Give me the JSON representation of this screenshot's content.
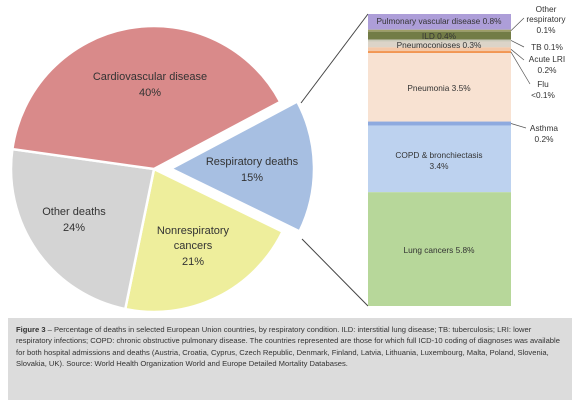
{
  "chart_data": [
    {
      "type": "pie",
      "slices": [
        {
          "label": "Cardiovascular disease",
          "value_label": "40%",
          "value": 40,
          "color": "#d98a8a"
        },
        {
          "label": "Respiratory deaths",
          "value_label": "15%",
          "value": 15,
          "color": "#a7bfe2",
          "exploded": true
        },
        {
          "label": "Nonrespiratory cancers",
          "value_label": "21%",
          "value": 21,
          "color": "#eeee9c"
        },
        {
          "label": "Other deaths",
          "value_label": "24%",
          "value": 24,
          "color": "#d4d4d4"
        }
      ]
    },
    {
      "type": "bar",
      "stacked": true,
      "total_label": "Respiratory deaths 15%",
      "segments": [
        {
          "name": "Pulmonary vascular disease 0.8%",
          "value": 0.8,
          "color": "#ad9ed8",
          "label_position": "inside"
        },
        {
          "name": "Other respiratory 0.1%",
          "value": 0.1,
          "color": "#9e9e66",
          "label_position": "outside"
        },
        {
          "name": "ILD 0.4%",
          "value": 0.4,
          "color": "#727c46",
          "label_position": "inside"
        },
        {
          "name": "TB 0.1%",
          "value": 0.1,
          "color": "#c9c9b9",
          "label_position": "outside"
        },
        {
          "name": "Pneumoconioses 0.3%",
          "value": 0.3,
          "color": "#dcd4c8",
          "label_position": "inside"
        },
        {
          "name": "Acute LRI 0.2%",
          "value": 0.2,
          "color": "#f4c8a8",
          "label_position": "outside"
        },
        {
          "name": "Flu <0.1%",
          "value": 0.05,
          "color": "#ef7f2c",
          "label_position": "outside"
        },
        {
          "name": "Pneumonia 3.5%",
          "value": 3.5,
          "color": "#f8e2d2",
          "label_position": "inside"
        },
        {
          "name": "Asthma 0.2%",
          "value": 0.2,
          "color": "#8eaadf",
          "label_position": "outside"
        },
        {
          "name": "COPD & bronchiectasis 3.4%",
          "value": 3.4,
          "color": "#bdd2ef",
          "label_position": "inside"
        },
        {
          "name": "Lung cancers 5.8%",
          "value": 5.8,
          "color": "#b7d79a",
          "label_position": "inside"
        }
      ]
    }
  ],
  "pie_labels": {
    "cardio_name": "Cardiovascular disease",
    "cardio_pct": "40%",
    "resp_name": "Respiratory deaths",
    "resp_pct": "15%",
    "nonresp_line1": "Nonrespiratory",
    "nonresp_line2": "cancers",
    "nonresp_pct": "21%",
    "other_name": "Other deaths",
    "other_pct": "24%"
  },
  "bar_labels": {
    "pulmonary": "Pulmonary vascular disease 0.8%",
    "ild": "ILD 0.4%",
    "pneumoconioses": "Pneumoconioses 0.3%",
    "pneumonia": "Pneumonia 3.5%",
    "copd_line1": "COPD & bronchiectasis",
    "copd_line2": "3.4%",
    "lung": "Lung cancers 5.8%",
    "other_resp_line1": "Other",
    "other_resp_line2": "respiratory",
    "other_resp_line3": "0.1%",
    "tb": "TB 0.1%",
    "acute_line1": "Acute LRI",
    "acute_line2": "0.2%",
    "flu_line1": "Flu",
    "flu_line2": "<0.1%",
    "asthma_line1": "Asthma",
    "asthma_line2": "0.2%"
  },
  "caption": {
    "figure_label": "Figure 3",
    "text": " – Percentage of deaths in selected European Union countries, by respiratory condition. ILD: interstitial lung disease; TB: tuberculosis; LRI: lower respiratory infections; COPD: chronic obstructive pulmonary disease. The countries represented are those for which full ICD-10 coding of diagnoses was available for both hospital admissions and deaths (Austria, Croatia, Cyprus, Czech Republic, Denmark, Finland, Latvia, Lithuania, Luxembourg, Malta, Poland, Slovenia, Slovakia, UK). Source: World Health Organization World and Europe Detailed Mortality Databases."
  }
}
